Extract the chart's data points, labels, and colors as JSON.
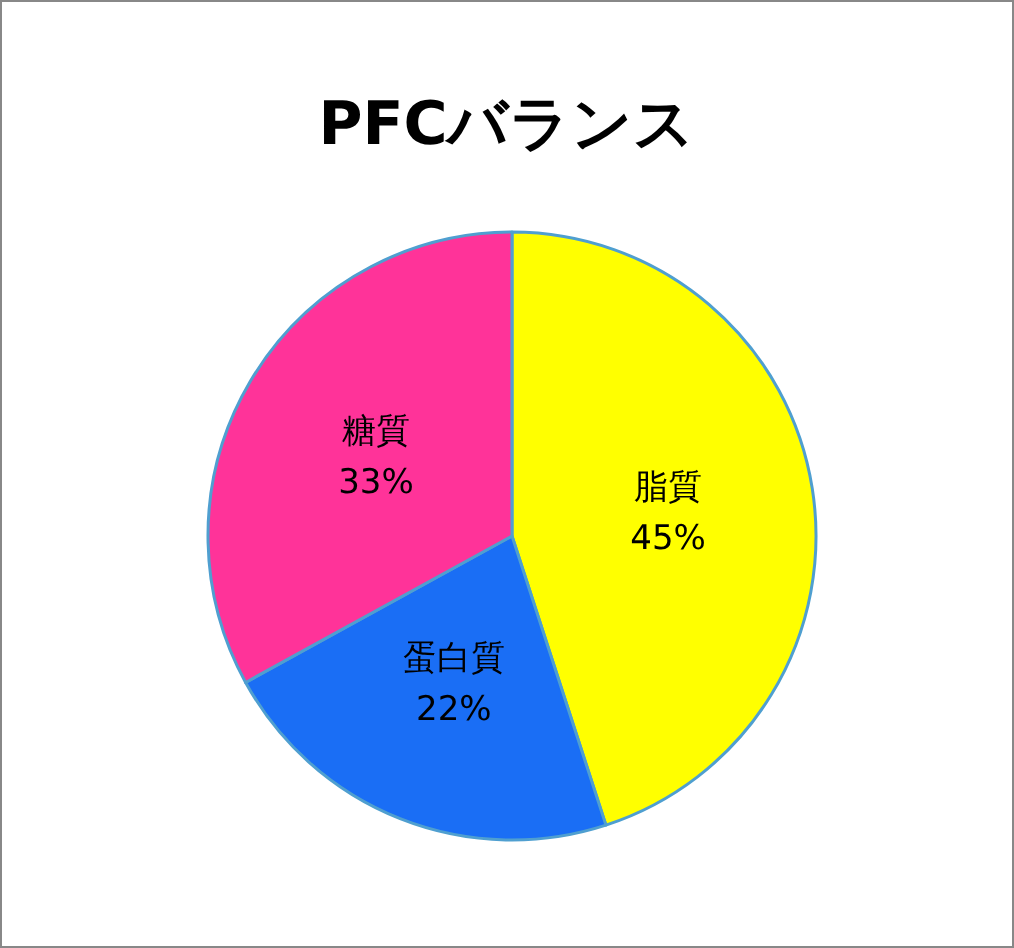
{
  "chart_data": {
    "type": "pie",
    "title": "PFCバランス",
    "categories": [
      "脂質",
      "蛋白質",
      "糖質"
    ],
    "values": [
      45,
      22,
      33
    ],
    "value_labels": [
      "45%",
      "22%",
      "33%"
    ],
    "colors": [
      "#ffff00",
      "#1a6ef5",
      "#ff3399"
    ]
  }
}
